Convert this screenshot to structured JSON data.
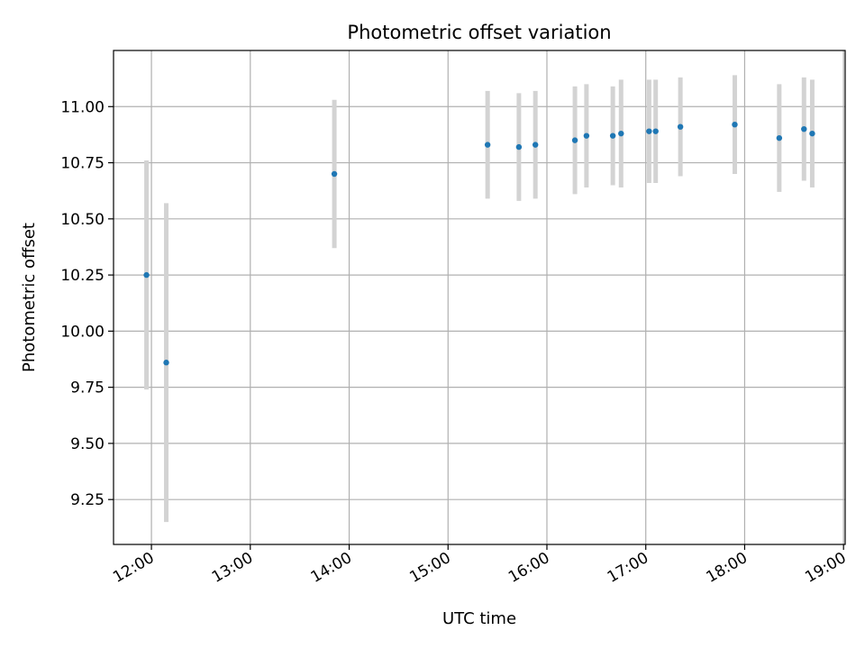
{
  "chart_data": {
    "type": "scatter",
    "title": "Photometric offset variation",
    "xlabel": "UTC time",
    "ylabel": "Photometric offset",
    "x_ticks": [
      "12:00",
      "13:00",
      "14:00",
      "15:00",
      "16:00",
      "17:00",
      "18:00",
      "19:00"
    ],
    "y_ticks": [
      "9.25",
      "9.50",
      "9.75",
      "10.00",
      "10.25",
      "10.50",
      "10.75",
      "11.00"
    ],
    "xlim": [
      "11:37",
      "19:01"
    ],
    "ylim": [
      9.05,
      11.25
    ],
    "grid": true,
    "point_color": "#1f77b4",
    "errorbar_color": "#d3d3d3",
    "points": [
      {
        "x": "11:57",
        "y": 10.25,
        "yerr": 0.51
      },
      {
        "x": "12:09",
        "y": 9.86,
        "yerr": 0.71
      },
      {
        "x": "13:51",
        "y": 10.7,
        "yerr": 0.33
      },
      {
        "x": "15:24",
        "y": 10.83,
        "yerr": 0.24
      },
      {
        "x": "15:43",
        "y": 10.82,
        "yerr": 0.24
      },
      {
        "x": "15:53",
        "y": 10.83,
        "yerr": 0.24
      },
      {
        "x": "16:17",
        "y": 10.85,
        "yerr": 0.24
      },
      {
        "x": "16:24",
        "y": 10.87,
        "yerr": 0.23
      },
      {
        "x": "16:40",
        "y": 10.87,
        "yerr": 0.22
      },
      {
        "x": "16:45",
        "y": 10.88,
        "yerr": 0.24
      },
      {
        "x": "17:02",
        "y": 10.89,
        "yerr": 0.23
      },
      {
        "x": "17:06",
        "y": 10.89,
        "yerr": 0.23
      },
      {
        "x": "17:21",
        "y": 10.91,
        "yerr": 0.22
      },
      {
        "x": "17:54",
        "y": 10.92,
        "yerr": 0.22
      },
      {
        "x": "18:21",
        "y": 10.86,
        "yerr": 0.24
      },
      {
        "x": "18:36",
        "y": 10.9,
        "yerr": 0.23
      },
      {
        "x": "18:41",
        "y": 10.88,
        "yerr": 0.24
      }
    ]
  }
}
